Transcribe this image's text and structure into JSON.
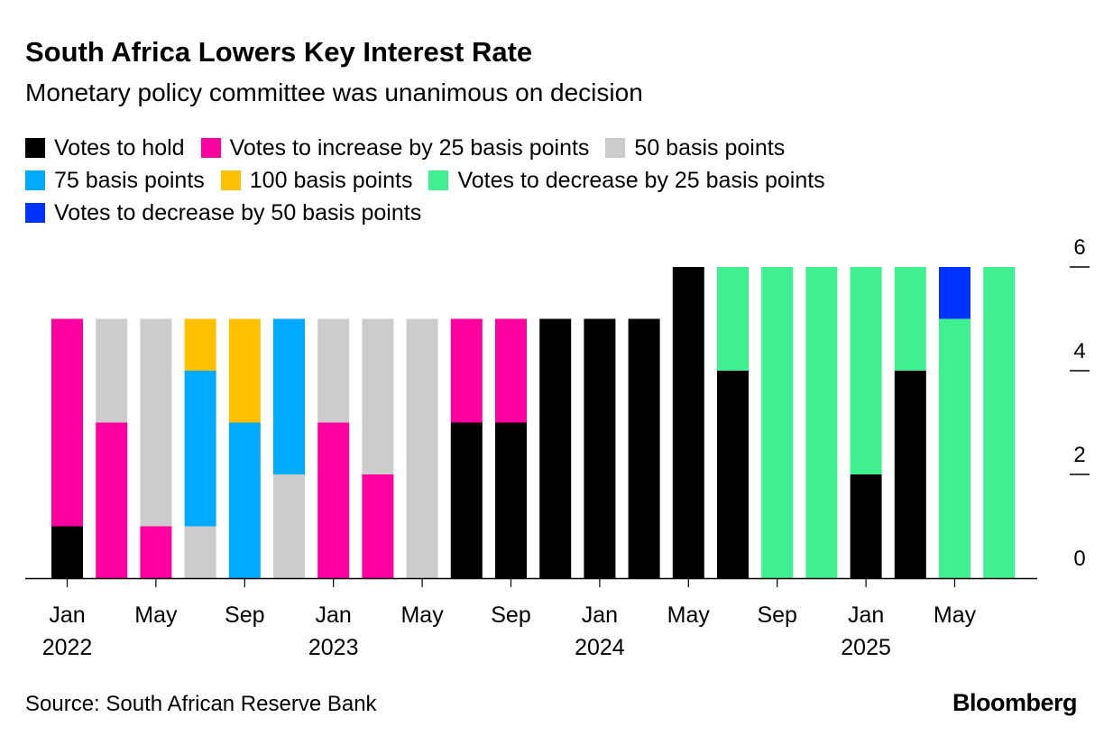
{
  "title": "South Africa Lowers Key Interest Rate",
  "subtitle": "Monetary policy committee was unanimous on decision",
  "source": "Source: South African Reserve Bank",
  "brand": "Bloomberg",
  "chart_data": {
    "type": "bar",
    "stacked": true,
    "ylim": [
      0,
      6
    ],
    "yticks": [
      0,
      2,
      4,
      6
    ],
    "y_axis_position": "right",
    "grid": false,
    "legend_placement": "top",
    "x_tick_labels": [
      {
        "index": 0,
        "month": "Jan",
        "year": "2022"
      },
      {
        "index": 2,
        "month": "May",
        "year": ""
      },
      {
        "index": 4,
        "month": "Sep",
        "year": ""
      },
      {
        "index": 6,
        "month": "Jan",
        "year": "2023"
      },
      {
        "index": 8,
        "month": "May",
        "year": ""
      },
      {
        "index": 10,
        "month": "Sep",
        "year": ""
      },
      {
        "index": 12,
        "month": "Jan",
        "year": "2024"
      },
      {
        "index": 14,
        "month": "May",
        "year": ""
      },
      {
        "index": 16,
        "month": "Sep",
        "year": ""
      },
      {
        "index": 18,
        "month": "Jan",
        "year": "2025"
      },
      {
        "index": 20,
        "month": "May",
        "year": ""
      }
    ],
    "categories": [
      "Jan 2022",
      "Mar 2022",
      "May 2022",
      "Jul 2022",
      "Sep 2022",
      "Nov 2022",
      "Jan 2023",
      "Mar 2023",
      "May 2023",
      "Jul 2023",
      "Sep 2023",
      "Nov 2023",
      "Jan 2024",
      "Mar 2024",
      "May 2024",
      "Jul 2024",
      "Sep 2024",
      "Nov 2024",
      "Jan 2025",
      "Mar 2025",
      "May 2025",
      "Jul 2025"
    ],
    "series": [
      {
        "name": "Votes to hold",
        "color": "#000000",
        "values": [
          1,
          0,
          0,
          0,
          0,
          0,
          0,
          0,
          0,
          3,
          3,
          5,
          5,
          5,
          6,
          4,
          0,
          0,
          2,
          4,
          0,
          0
        ]
      },
      {
        "name": "Votes to increase by 25 basis points",
        "color": "#ff00a0",
        "values": [
          4,
          3,
          1,
          0,
          0,
          0,
          3,
          2,
          0,
          2,
          2,
          0,
          0,
          0,
          0,
          0,
          0,
          0,
          0,
          0,
          0,
          0
        ]
      },
      {
        "name": "50 basis points",
        "color": "#cccccc",
        "values": [
          0,
          2,
          4,
          1,
          0,
          2,
          2,
          3,
          5,
          0,
          0,
          0,
          0,
          0,
          0,
          0,
          0,
          0,
          0,
          0,
          0,
          0
        ]
      },
      {
        "name": "75 basis points",
        "color": "#00aaff",
        "values": [
          0,
          0,
          0,
          3,
          3,
          3,
          0,
          0,
          0,
          0,
          0,
          0,
          0,
          0,
          0,
          0,
          0,
          0,
          0,
          0,
          0,
          0
        ]
      },
      {
        "name": "100 basis points",
        "color": "#ffc000",
        "values": [
          0,
          0,
          0,
          1,
          2,
          0,
          0,
          0,
          0,
          0,
          0,
          0,
          0,
          0,
          0,
          0,
          0,
          0,
          0,
          0,
          0,
          0
        ]
      },
      {
        "name": "Votes to decrease by 25 basis points",
        "color": "#40f090",
        "values": [
          0,
          0,
          0,
          0,
          0,
          0,
          0,
          0,
          0,
          0,
          0,
          0,
          0,
          0,
          0,
          2,
          6,
          6,
          4,
          2,
          5,
          6
        ]
      },
      {
        "name": "Votes to decrease by 50 basis points",
        "color": "#0033ff",
        "values": [
          0,
          0,
          0,
          0,
          0,
          0,
          0,
          0,
          0,
          0,
          0,
          0,
          0,
          0,
          0,
          0,
          0,
          0,
          0,
          0,
          1,
          0
        ]
      }
    ],
    "legend_rows": [
      [
        0,
        1,
        2
      ],
      [
        3,
        4,
        5
      ],
      [
        6
      ]
    ]
  }
}
